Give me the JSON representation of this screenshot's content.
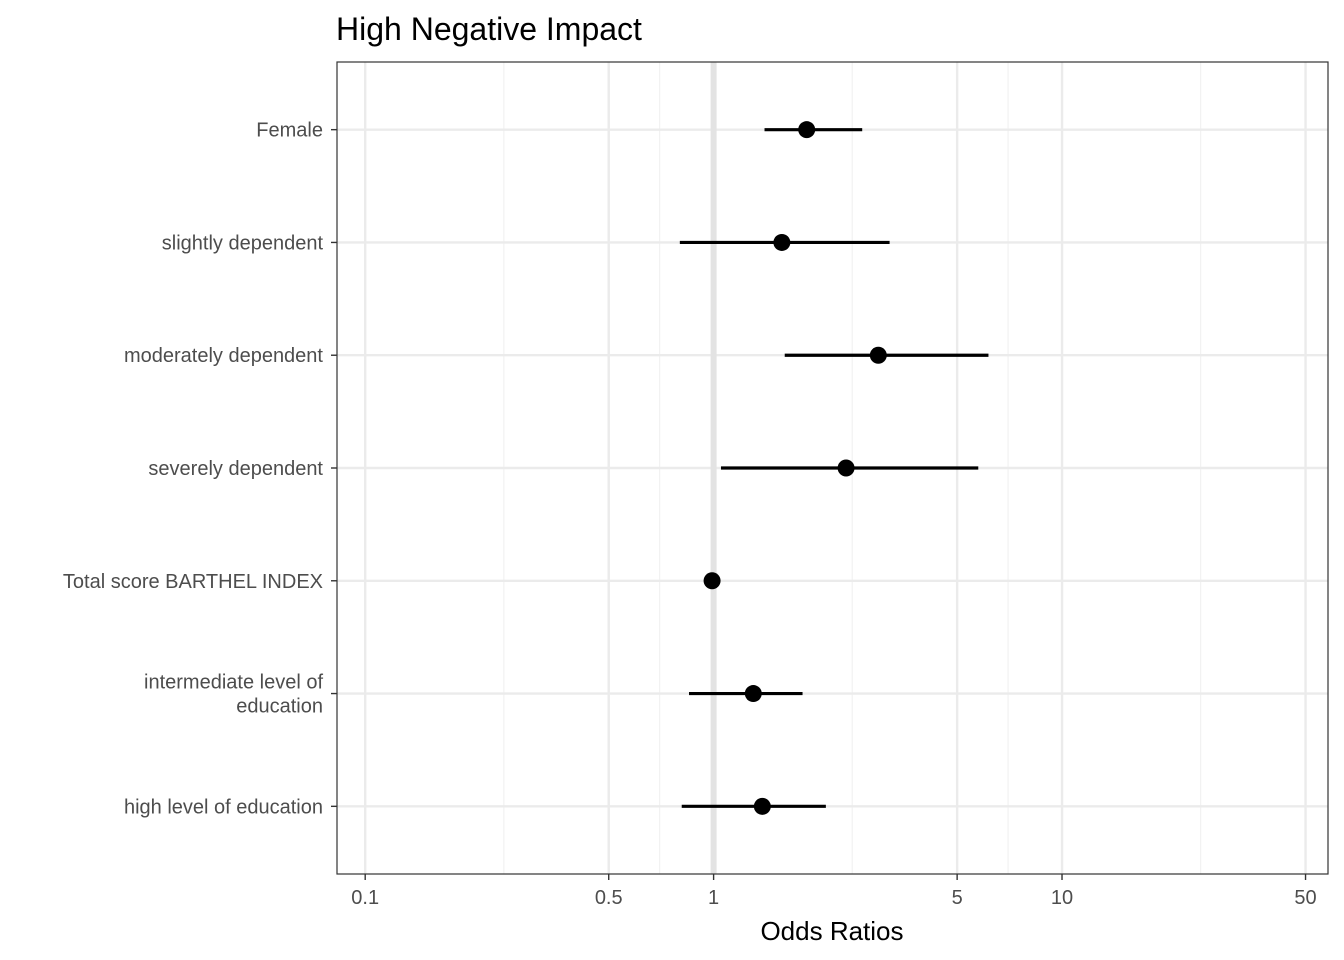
{
  "chart_data": {
    "type": "forest",
    "title": "High Negative Impact",
    "xlabel": "Odds Ratios",
    "ylabel": "",
    "x_scale": "log10",
    "xlim": [
      0.083,
      58
    ],
    "x_ticks": [
      0.1,
      0.5,
      1,
      5,
      10,
      50
    ],
    "x_tick_labels": [
      "0.1",
      "0.5",
      "1",
      "5",
      "10",
      "50"
    ],
    "x_minor_gridlines": [
      0.25,
      0.7,
      2.5,
      7,
      25
    ],
    "reference_line": 1,
    "grid": true,
    "rows": [
      {
        "label": "Female",
        "estimate": 1.85,
        "ci_low": 1.4,
        "ci_high": 2.67
      },
      {
        "label": "slightly dependent",
        "estimate": 1.57,
        "ci_low": 0.8,
        "ci_high": 3.2
      },
      {
        "label": "moderately dependent",
        "estimate": 2.97,
        "ci_low": 1.6,
        "ci_high": 6.15
      },
      {
        "label": "severely dependent",
        "estimate": 2.4,
        "ci_low": 1.05,
        "ci_high": 5.75
      },
      {
        "label": "Total score BARTHEL INDEX",
        "estimate": 0.99,
        "ci_low": 0.98,
        "ci_high": 1.0
      },
      {
        "label": "intermediate level of education",
        "label_lines": [
          "intermediate level of",
          "education"
        ],
        "estimate": 1.3,
        "ci_low": 0.85,
        "ci_high": 1.8
      },
      {
        "label": "high level of education",
        "label_lines": [
          "high level of education"
        ],
        "estimate": 1.38,
        "ci_low": 0.81,
        "ci_high": 2.1
      }
    ],
    "colors": {
      "point": "#000000",
      "ci_line": "#000000",
      "grid_major": "#ebebeb",
      "grid_minor": "#f2f2f2",
      "reference": "#e3e3e3",
      "panel_border": "#333333"
    }
  }
}
